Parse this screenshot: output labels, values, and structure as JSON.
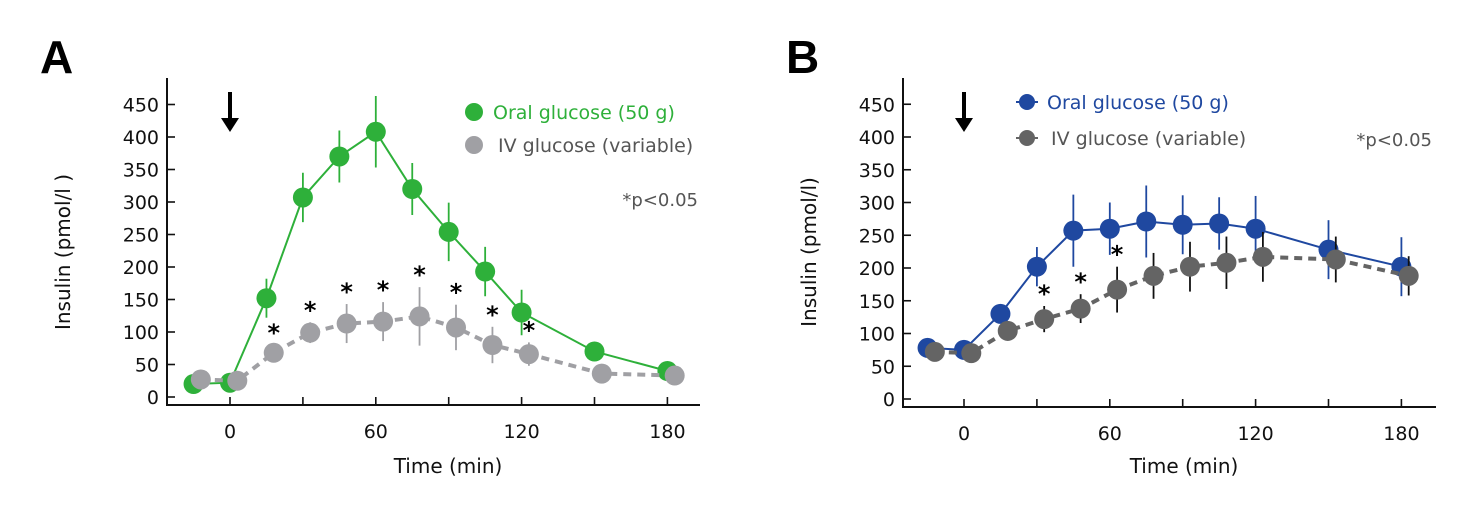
{
  "chart_data": [
    {
      "panel": "A",
      "type": "line",
      "title": "",
      "xlabel": "Time (min)",
      "ylabel": "Insulin (pmol/l )",
      "xlim": [
        -25,
        190
      ],
      "ylim": [
        0,
        480
      ],
      "xticks": [
        0,
        30,
        60,
        90,
        120,
        150,
        180
      ],
      "xtick_labels": [
        "0",
        "",
        "60",
        "",
        "120",
        "",
        "180"
      ],
      "yticks": [
        0,
        50,
        100,
        150,
        200,
        250,
        300,
        350,
        400,
        450
      ],
      "ytick_labels": [
        "0",
        "50",
        "100",
        "150",
        "200",
        "250",
        "300",
        "350",
        "400",
        "450"
      ],
      "grid": false,
      "legend_position": "top-right",
      "annotation": "*p<0.05",
      "arrow_at_x": 0,
      "series": [
        {
          "name": "Oral glucose (50 g)",
          "color": "#2eb03a",
          "line_style": "solid",
          "legend_color": "#2eb03a",
          "x": [
            -15,
            0,
            15,
            30,
            45,
            60,
            75,
            90,
            105,
            120,
            150,
            180
          ],
          "y": [
            20,
            22,
            152,
            307,
            370,
            408,
            320,
            254,
            193,
            130,
            70,
            40
          ],
          "err": [
            6,
            6,
            30,
            38,
            40,
            55,
            40,
            45,
            38,
            35,
            12,
            12
          ]
        },
        {
          "name": "IV glucose (variable)",
          "color": "#a0a0a4",
          "line_style": "dashed",
          "legend_color": "#a0a0a4",
          "x": [
            -12,
            3,
            18,
            33,
            48,
            63,
            78,
            93,
            108,
            123,
            153,
            183
          ],
          "y": [
            27,
            25,
            68,
            99,
            113,
            116,
            124,
            107,
            80,
            66,
            36,
            33
          ],
          "err": [
            5,
            5,
            12,
            16,
            30,
            30,
            45,
            35,
            28,
            18,
            12,
            8
          ],
          "significant": [
            false,
            false,
            true,
            true,
            true,
            true,
            true,
            true,
            true,
            true,
            false,
            false
          ]
        }
      ]
    },
    {
      "panel": "B",
      "type": "line",
      "title": "",
      "xlabel": "Time (min)",
      "ylabel": "Insulin (pmol/l)",
      "xlim": [
        -25,
        190
      ],
      "ylim": [
        0,
        480
      ],
      "xticks": [
        0,
        30,
        60,
        90,
        120,
        150,
        180
      ],
      "xtick_labels": [
        "0",
        "",
        "60",
        "",
        "120",
        "",
        "180"
      ],
      "yticks": [
        0,
        50,
        100,
        150,
        200,
        250,
        300,
        350,
        400,
        450
      ],
      "ytick_labels": [
        "0",
        "50",
        "100",
        "150",
        "200",
        "250",
        "300",
        "350",
        "400",
        "450"
      ],
      "grid": false,
      "legend_position": "top",
      "annotation": "*p<0.05",
      "arrow_at_x": 0,
      "series": [
        {
          "name": "Oral glucose (50 g)",
          "color": "#1f48a0",
          "line_style": "solid",
          "legend_color": "#1f48a0",
          "x": [
            -15,
            0,
            15,
            30,
            45,
            60,
            75,
            90,
            105,
            120,
            150,
            180
          ],
          "y": [
            78,
            75,
            130,
            202,
            257,
            260,
            271,
            266,
            268,
            260,
            228,
            202
          ],
          "err": [
            12,
            12,
            12,
            30,
            55,
            40,
            55,
            45,
            40,
            50,
            45,
            45
          ]
        },
        {
          "name": "IV glucose (variable)",
          "color": "#646464",
          "line_style": "dashed",
          "legend_color": "#646464",
          "x": [
            -12,
            3,
            18,
            33,
            48,
            63,
            78,
            93,
            108,
            123,
            153,
            183
          ],
          "y": [
            72,
            70,
            104,
            122,
            138,
            167,
            188,
            202,
            208,
            217,
            213,
            188
          ],
          "err": [
            8,
            8,
            15,
            20,
            22,
            35,
            35,
            38,
            40,
            38,
            35,
            30
          ],
          "significant": [
            false,
            false,
            false,
            true,
            true,
            true,
            false,
            false,
            false,
            false,
            false,
            false
          ]
        }
      ]
    }
  ]
}
